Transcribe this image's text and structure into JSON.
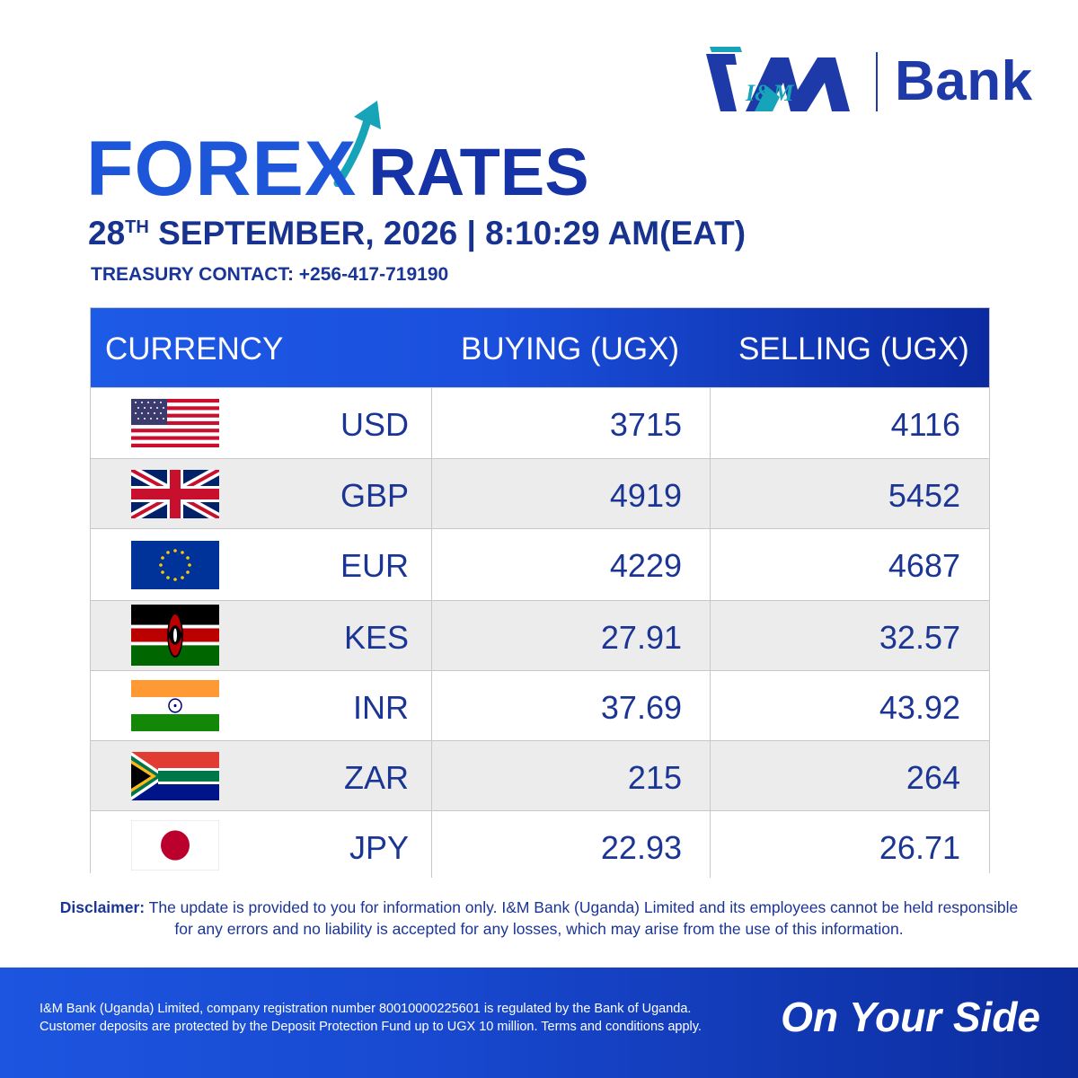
{
  "brand": {
    "logo_text": "I&M",
    "bank_label": "Bank"
  },
  "header": {
    "title_part1": "FORE",
    "title_x": "X",
    "title_part2": "RATES",
    "date_day": "28",
    "date_suffix": "TH",
    "date_rest": " SEPTEMBER, 2026 | 8:10:29 AM(EAT)",
    "contact": "TREASURY CONTACT: +256-417-719190"
  },
  "table": {
    "columns": [
      "CURRENCY",
      "BUYING (UGX)",
      "SELLING (UGX)"
    ],
    "rows": [
      {
        "flag": "us-flag-icon",
        "code": "USD",
        "buying": "3715",
        "selling": "4116"
      },
      {
        "flag": "uk-flag-icon",
        "code": "GBP",
        "buying": "4919",
        "selling": "5452"
      },
      {
        "flag": "eu-flag-icon",
        "code": "EUR",
        "buying": "4229",
        "selling": "4687"
      },
      {
        "flag": "kenya-flag-icon",
        "code": "KES",
        "buying": "27.91",
        "selling": "32.57"
      },
      {
        "flag": "india-flag-icon",
        "code": "INR",
        "buying": "37.69",
        "selling": "43.92"
      },
      {
        "flag": "south-africa-flag-icon",
        "code": "ZAR",
        "buying": "215",
        "selling": "264"
      },
      {
        "flag": "japan-flag-icon",
        "code": "JPY",
        "buying": "22.93",
        "selling": "26.71"
      }
    ]
  },
  "disclaimer": {
    "label": "Disclaimer:",
    "text": " The update is provided to you for information only. I&M Bank (Uganda) Limited and its employees cannot be held responsible for any errors and no liability is accepted for any losses, which may arise from the use of this information."
  },
  "footer": {
    "legal_line1": "I&M Bank (Uganda) Limited, company registration number 80010000225601 is regulated by the Bank of Uganda.",
    "legal_line2": "Customer deposits are protected by the Deposit Protection Fund up to UGX 10 million. Terms and conditions apply.",
    "tagline": "On Your Side"
  },
  "colors": {
    "brand_blue": "#1e3aa8",
    "accent_blue": "#1e56d9",
    "arrow_teal": "#17a3b8"
  }
}
